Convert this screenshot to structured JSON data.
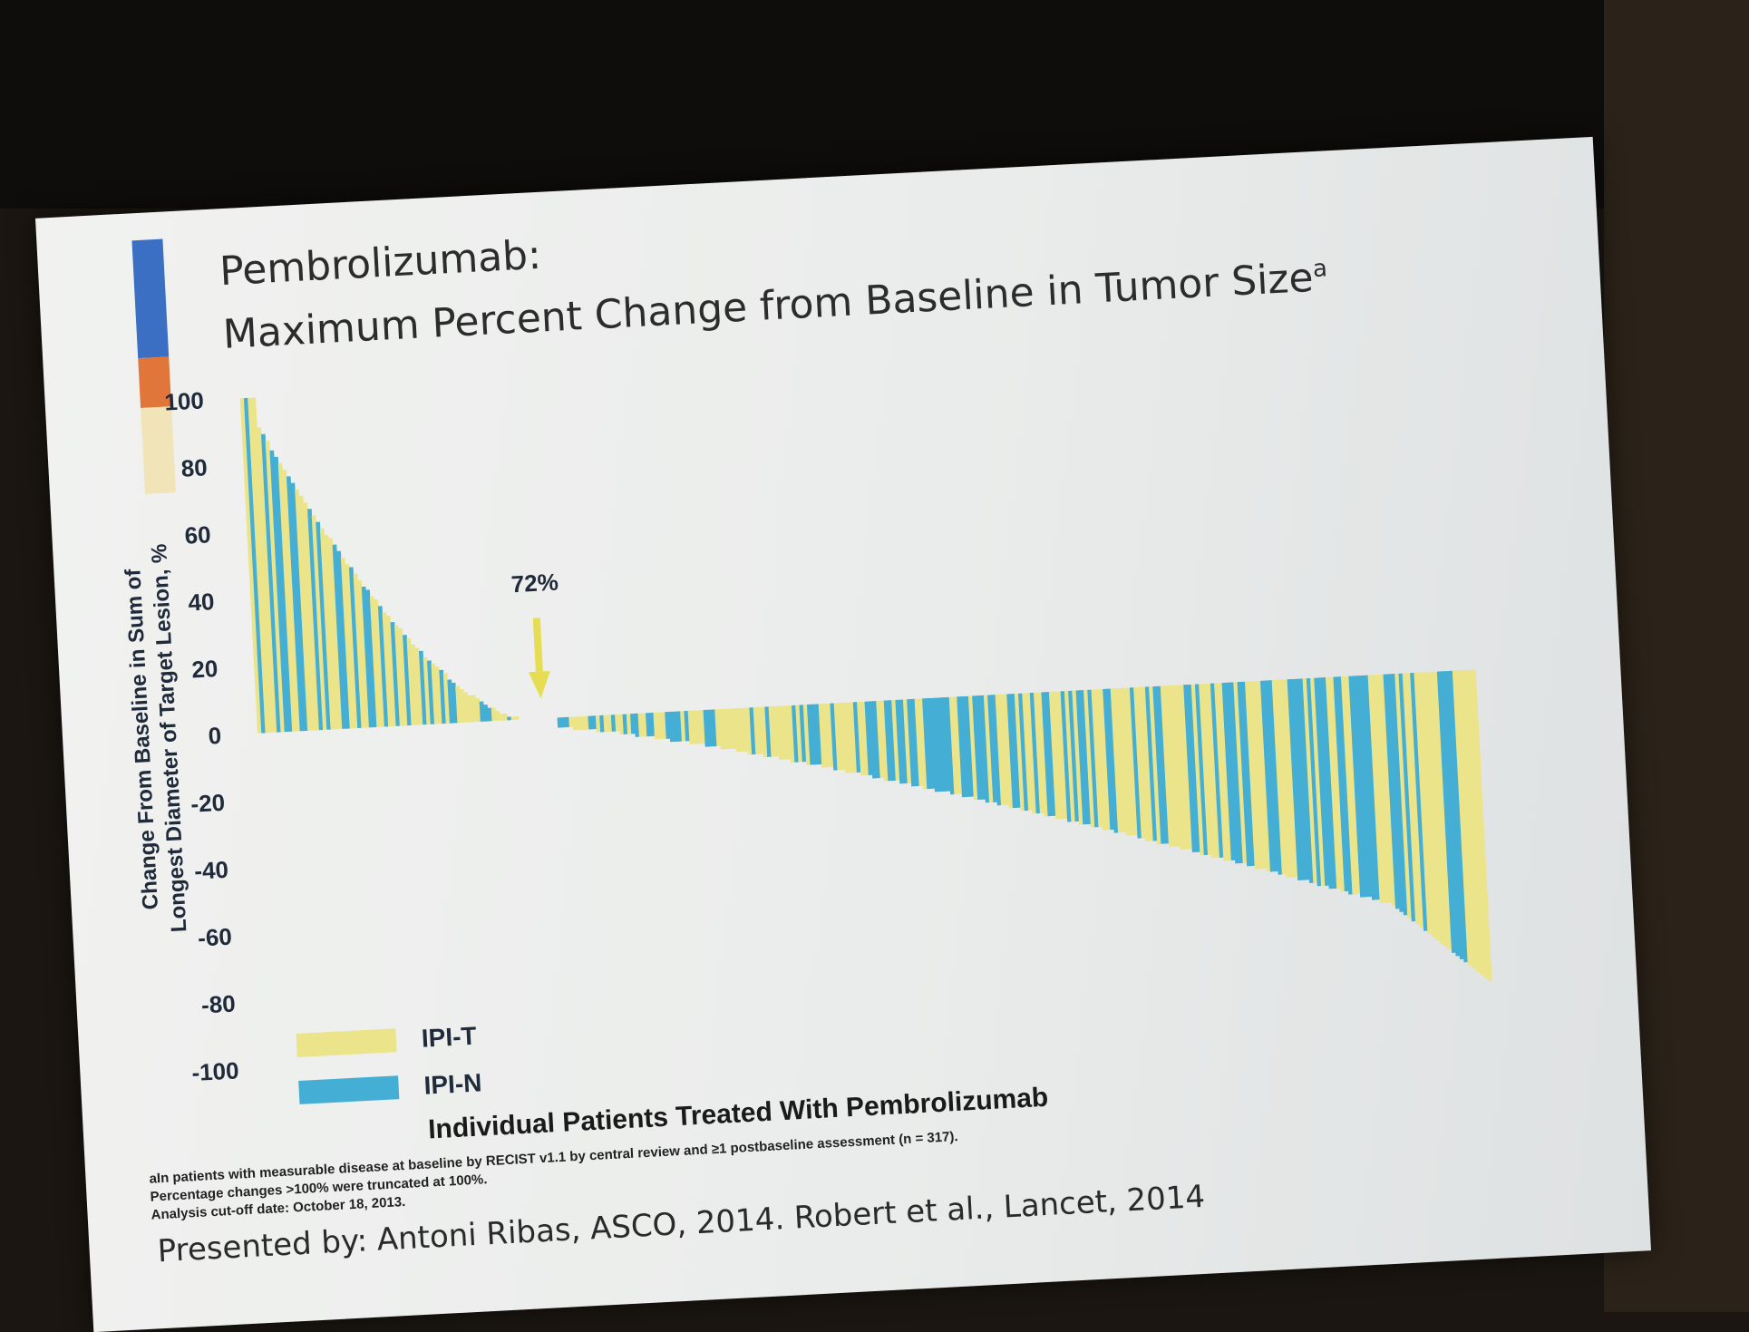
{
  "slide": {
    "title_line1": "Pembrolizumab:",
    "title_line2": "Maximum Percent Change from Baseline in Tumor Size",
    "title_superscript": "a",
    "accent_colors": [
      "#3a6fc4",
      "#e0763a",
      "#f1e4b8"
    ],
    "footnotes": [
      "aIn patients with measurable disease at baseline by RECIST v1.1 by central review and ≥1 postbaseline assessment (n = 317).",
      "Percentage changes >100% were truncated at 100%.",
      "Analysis cut-off date: October 18, 2013."
    ],
    "source": "Presented by: Antoni Ribas, ASCO, 2014. Robert et al., Lancet, 2014"
  },
  "chart_data": {
    "type": "bar",
    "title": "",
    "xlabel": "Individual Patients Treated With Pembrolizumab",
    "ylabel": [
      "Change From Baseline in Sum of",
      "Longest Diameter of Target Lesion, %"
    ],
    "ylim": [
      -100,
      100
    ],
    "yticks": [
      100,
      80,
      60,
      40,
      20,
      0,
      -20,
      -40,
      -60,
      -80,
      -100
    ],
    "grid": false,
    "legend_position": "bottom-left",
    "legend": [
      {
        "name": "IPI-T",
        "color": "#ece48a"
      },
      {
        "name": "IPI-N",
        "color": "#45aed4"
      }
    ],
    "annotation": {
      "text": "72%",
      "arrow_color": "#e6dd52"
    },
    "n_patients": 317,
    "values_note": "Values sorted from largest increase to largest decrease; estimated from the waterfall shape.",
    "series_pattern_seed": 7
  }
}
